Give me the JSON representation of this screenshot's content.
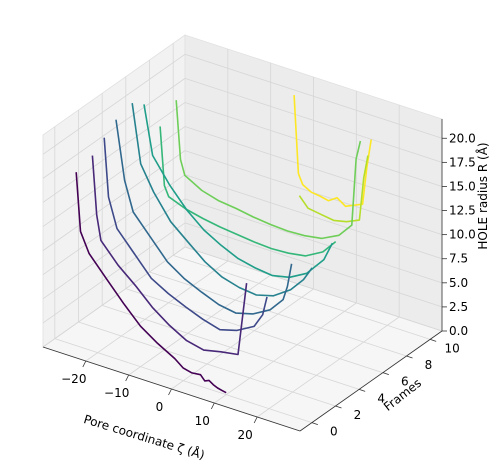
{
  "chart_data": {
    "type": "line",
    "projection": "3d",
    "title": "",
    "xlabel": "Pore coordinate ζ (Å)",
    "ylabel": "Frames",
    "zlabel": "HOLE radius R (Å)",
    "xlim": [
      -30,
      30
    ],
    "ylim": [
      -1,
      11
    ],
    "zlim": [
      0,
      22
    ],
    "x_ticks": [
      "−20",
      "−10",
      "0",
      "10",
      "20"
    ],
    "y_ticks": [
      "0",
      "2",
      "4",
      "6",
      "8",
      "10"
    ],
    "z_ticks": [
      "0.0",
      "2.5",
      "5.0",
      "7.5",
      "10.0",
      "12.5",
      "15.0",
      "17.5",
      "20.0"
    ],
    "grid": true,
    "colormap": "viridis",
    "series": [
      {
        "frame": 0,
        "color": "#440154",
        "zeta": [
          -25,
          -24,
          -22,
          -18,
          -14,
          -10,
          -6,
          -2,
          0,
          2,
          4,
          5,
          6,
          7,
          8,
          9,
          10
        ],
        "radius": [
          18,
          12,
          10,
          8,
          6,
          4.2,
          3,
          2,
          1.3,
          1.1,
          1.2,
          0.7,
          0.9,
          0.6,
          0.4,
          0.3,
          0.2
        ]
      },
      {
        "frame": 1,
        "color": "#482878",
        "zeta": [
          -24,
          -23,
          -22,
          -18,
          -14,
          -10,
          -6,
          -2,
          2,
          6,
          10,
          12
        ],
        "radius": [
          19,
          13,
          10.5,
          8.5,
          7,
          5.3,
          4,
          3,
          2.6,
          3,
          3.3,
          11
        ]
      },
      {
        "frame": 2,
        "color": "#3e4989",
        "zeta": [
          -24,
          -23,
          -21,
          -17,
          -13,
          -9,
          -5,
          -1,
          3,
          7,
          11,
          13,
          14
        ],
        "radius": [
          20,
          14,
          11,
          9,
          7,
          6,
          5.2,
          4.5,
          4,
          4.5,
          5.5,
          7,
          9
        ]
      },
      {
        "frame": 3,
        "color": "#31688e",
        "zeta": [
          -24,
          -22,
          -20,
          -16,
          -12,
          -8,
          -4,
          0,
          4,
          8,
          12,
          15,
          16,
          17
        ],
        "radius": [
          21,
          15,
          12,
          10,
          8,
          6.8,
          6,
          5.3,
          5,
          5.5,
          6.5,
          8,
          9.5,
          12
        ]
      },
      {
        "frame": 4,
        "color": "#26828e",
        "zeta": [
          -23,
          -21,
          -18,
          -14,
          -10,
          -6,
          -2,
          2,
          6,
          10,
          14,
          17,
          19
        ],
        "radius": [
          22,
          16,
          13.5,
          11,
          9.5,
          8,
          7,
          6.5,
          6.3,
          6.8,
          8,
          9.5,
          11
        ]
      },
      {
        "frame": 5,
        "color": "#1f9e89",
        "zeta": [
          -23,
          -21,
          -17,
          -13,
          -9,
          -5,
          -1,
          3,
          7,
          11,
          15,
          19,
          21
        ],
        "radius": [
          21,
          16,
          13.5,
          11.5,
          10,
          9,
          8.2,
          7.8,
          7.6,
          8,
          9,
          11,
          13
        ]
      },
      {
        "frame": 6,
        "color": "#35b779",
        "zeta": [
          -22,
          -21,
          -20,
          -16,
          -12,
          -8,
          -4,
          0,
          4,
          8,
          12,
          16,
          19
        ],
        "radius": [
          18,
          12,
          11,
          10.3,
          9.9,
          9.6,
          9.4,
          9.2,
          9.1,
          9.2,
          9.5,
          10.5,
          12
        ]
      },
      {
        "frame": 7,
        "color": "#6ece58",
        "zeta": [
          -21,
          -20,
          -19,
          -15,
          -11,
          -7,
          -3,
          1,
          5,
          9,
          13,
          17,
          20,
          21,
          22
        ],
        "radius": [
          20,
          14,
          12.5,
          11.5,
          11,
          10.8,
          10.5,
          10.3,
          10.2,
          10.3,
          10.6,
          11.5,
          13,
          20,
          22
        ]
      },
      {
        "frame": 8,
        "color": "#b5de2b",
        "zeta": [
          5,
          6,
          7,
          10,
          13,
          16,
          19,
          20,
          21
        ],
        "radius": [
          13,
          12.5,
          12,
          11.8,
          11.6,
          11.9,
          12.5,
          17,
          19.5
        ]
      },
      {
        "frame": 9,
        "color": "#fde725",
        "zeta": [
          1,
          2,
          3,
          5,
          7,
          9,
          11,
          13,
          15,
          17,
          18,
          19
        ],
        "radius": [
          22,
          14,
          13,
          12.5,
          12.4,
          12.2,
          12.8,
          12.2,
          12.6,
          13,
          17,
          20
        ]
      }
    ]
  }
}
